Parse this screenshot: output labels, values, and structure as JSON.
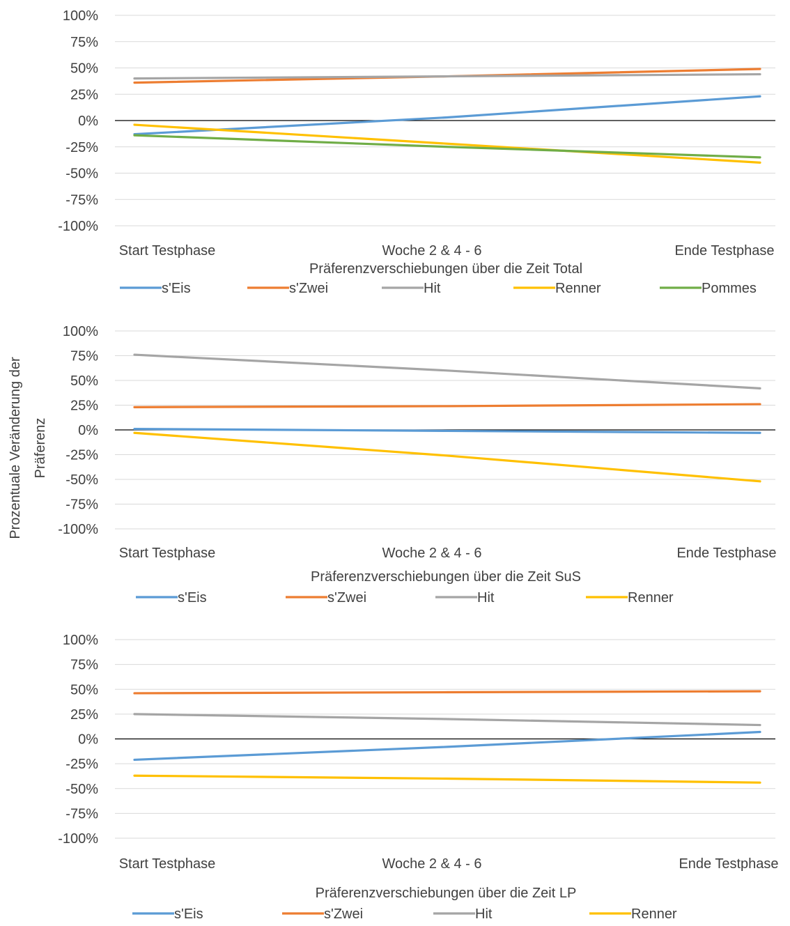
{
  "y_axis_label": [
    "Prozentuale Veränderung der",
    "Präferenz"
  ],
  "chart_data": [
    {
      "type": "line",
      "title": "Präferenzverschiebungen über die Zeit Total",
      "categories": [
        "Start Testphase",
        "Woche 2 & 4 - 6",
        "Ende Testphase"
      ],
      "yticks": [
        "100%",
        "75%",
        "50%",
        "25%",
        "0%",
        "-25%",
        "-50%",
        "-75%",
        "-100%"
      ],
      "ylim": [
        -100,
        100
      ],
      "legend_position": "bottom",
      "series": [
        {
          "name": "s'Eis",
          "color": "#5B9BD5",
          "values": [
            -13,
            3,
            23
          ]
        },
        {
          "name": "s'Zwei",
          "color": "#ED7D31",
          "values": [
            36,
            42,
            49
          ]
        },
        {
          "name": "Hit",
          "color": "#A5A5A5",
          "values": [
            40,
            42,
            44
          ]
        },
        {
          "name": "Renner",
          "color": "#FFC000",
          "values": [
            -4,
            -22,
            -40
          ]
        },
        {
          "name": "Pommes",
          "color": "#70AD47",
          "values": [
            -14,
            -25,
            -35
          ]
        }
      ]
    },
    {
      "type": "line",
      "title": "Präferenzverschiebungen über die Zeit SuS",
      "categories": [
        "Start Testphase",
        "Woche 2 & 4 - 6",
        "Ende Testphase"
      ],
      "yticks": [
        "100%",
        "75%",
        "50%",
        "25%",
        "0%",
        "-25%",
        "-50%",
        "-75%",
        "-100%"
      ],
      "ylim": [
        -100,
        100
      ],
      "legend_position": "bottom",
      "series": [
        {
          "name": "s'Eis",
          "color": "#5B9BD5",
          "values": [
            1,
            -1,
            -3
          ]
        },
        {
          "name": "s'Zwei",
          "color": "#ED7D31",
          "values": [
            23,
            24,
            26
          ]
        },
        {
          "name": "Hit",
          "color": "#A5A5A5",
          "values": [
            76,
            60,
            42
          ]
        },
        {
          "name": "Renner",
          "color": "#FFC000",
          "values": [
            -3,
            -26,
            -52
          ]
        }
      ]
    },
    {
      "type": "line",
      "title": "Präferenzverschiebungen über die Zeit LP",
      "categories": [
        "Start Testphase",
        "Woche 2 & 4 - 6",
        "Ende Testphase"
      ],
      "yticks": [
        "100%",
        "75%",
        "50%",
        "25%",
        "0%",
        "-25%",
        "-50%",
        "-75%",
        "-100%"
      ],
      "ylim": [
        -100,
        100
      ],
      "legend_position": "bottom",
      "series": [
        {
          "name": "s'Eis",
          "color": "#5B9BD5",
          "values": [
            -21,
            -8,
            7
          ]
        },
        {
          "name": "s'Zwei",
          "color": "#ED7D31",
          "values": [
            46,
            47,
            48
          ]
        },
        {
          "name": "Hit",
          "color": "#A5A5A5",
          "values": [
            25,
            20,
            14
          ]
        },
        {
          "name": "Renner",
          "color": "#FFC000",
          "values": [
            -37,
            -40,
            -44
          ]
        }
      ]
    }
  ]
}
